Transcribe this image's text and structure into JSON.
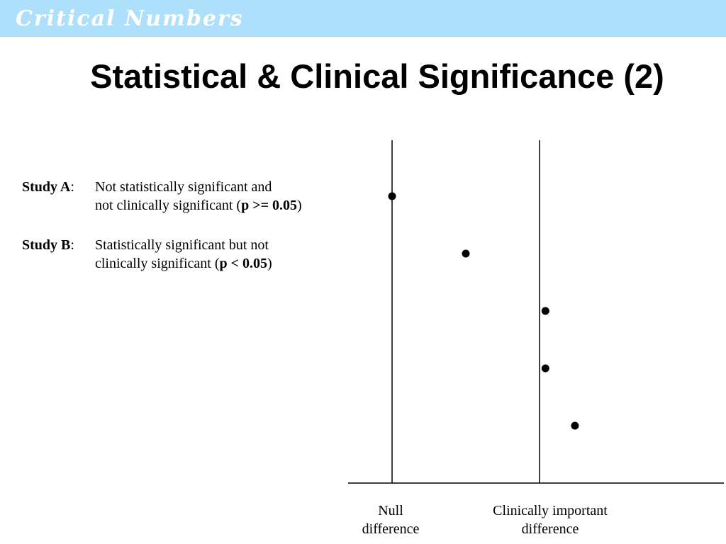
{
  "header": {
    "banner_text": "Critical Numbers",
    "band_color": "#aee0fb"
  },
  "slide": {
    "title": "Statistical & Clinical Significance (2)"
  },
  "studies": [
    {
      "label": "Study A",
      "colon": ":",
      "line1": "Not statistically significant and",
      "line2_prefix": "not clinically significant (",
      "line2_bold": "p >= 0.05",
      "line2_suffix": ")"
    },
    {
      "label": "Study B",
      "colon": ":",
      "line1": "Statistically significant but not",
      "line2_prefix": "clinically significant (",
      "line2_bold": "p < 0.05",
      "line2_suffix": ")"
    }
  ],
  "diagram": {
    "reference_lines": [
      {
        "name": "null",
        "label_line1": "Null",
        "label_line2": "difference"
      },
      {
        "name": "clinical",
        "label_line1": "Clinically important",
        "label_line2": "difference"
      }
    ],
    "point_estimates": [
      {
        "row": 1,
        "position": 0.0
      },
      {
        "row": 2,
        "position": 0.5
      },
      {
        "row": 3,
        "position": 1.04
      },
      {
        "row": 4,
        "position": 1.04
      },
      {
        "row": 5,
        "position": 1.24
      }
    ]
  }
}
